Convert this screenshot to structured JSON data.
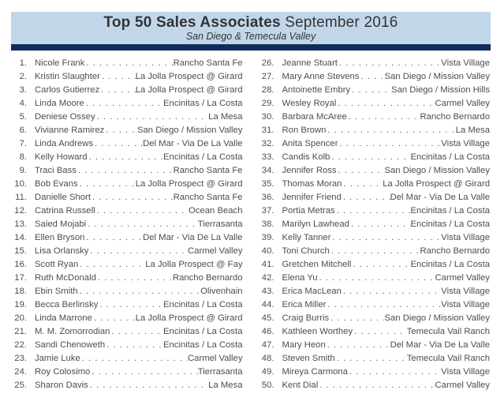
{
  "theme": {
    "band_color": "#c2d6ea",
    "bar_color": "#102c5c",
    "text_color": "#4d4d4d"
  },
  "header": {
    "title_bold": "Top 50 Sales Associates",
    "title_month": "September 2016",
    "subtitle": "San Diego & Temecula Valley"
  },
  "list": {
    "items": [
      {
        "rank": "1.",
        "name": "Nicole Frank",
        "office": "Rancho Santa Fe"
      },
      {
        "rank": "2.",
        "name": "Kristin Slaughter",
        "office": "La Jolla Prospect @ Girard"
      },
      {
        "rank": "3.",
        "name": "Carlos Gutierrez",
        "office": "La Jolla Prospect @ Girard"
      },
      {
        "rank": "4.",
        "name": "Linda Moore",
        "office": "Encinitas / La Costa"
      },
      {
        "rank": "5.",
        "name": "Deniese Ossey",
        "office": "La Mesa"
      },
      {
        "rank": "6.",
        "name": "Vivianne Ramirez",
        "office": "San Diego / Mission Valley"
      },
      {
        "rank": "7.",
        "name": "Linda Andrews",
        "office": "Del Mar - Via De La Valle"
      },
      {
        "rank": "8.",
        "name": "Kelly Howard",
        "office": "Encinitas / La Costa"
      },
      {
        "rank": "9.",
        "name": "Traci Bass",
        "office": "Rancho Santa Fe"
      },
      {
        "rank": "10.",
        "name": "Bob Evans",
        "office": "La Jolla Prospect @ Girard"
      },
      {
        "rank": "11.",
        "name": "Danielle Short",
        "office": "Rancho Santa Fe"
      },
      {
        "rank": "12.",
        "name": "Catrina Russell",
        "office": "Ocean Beach"
      },
      {
        "rank": "13.",
        "name": "Saied Mojabi",
        "office": "Tierrasanta"
      },
      {
        "rank": "14.",
        "name": "Ellen Bryson",
        "office": "Del Mar - Via De La Valle"
      },
      {
        "rank": "15.",
        "name": "Lisa Orlansky",
        "office": "Carmel Valley"
      },
      {
        "rank": "16.",
        "name": "Scott Ryan",
        "office": "La Jolla Prospect @ Fay"
      },
      {
        "rank": "17.",
        "name": "Ruth McDonald",
        "office": "Rancho Bernardo"
      },
      {
        "rank": "18.",
        "name": "Ebin Smith",
        "office": "Olivenhain"
      },
      {
        "rank": "19.",
        "name": "Becca Berlinsky",
        "office": "Encinitas / La Costa"
      },
      {
        "rank": "20.",
        "name": "Linda Marrone",
        "office": "La Jolla Prospect @ Girard"
      },
      {
        "rank": "21.",
        "name": "M. M. Zomorrodian",
        "office": "Encinitas / La Costa"
      },
      {
        "rank": "22.",
        "name": "Sandi Chenoweth",
        "office": "Encinitas / La Costa"
      },
      {
        "rank": "23.",
        "name": "Jamie Luke",
        "office": "Carmel Valley"
      },
      {
        "rank": "24.",
        "name": "Roy Colosimo",
        "office": "Tierrasanta"
      },
      {
        "rank": "25.",
        "name": "Sharon Davis",
        "office": "La Mesa"
      },
      {
        "rank": "26.",
        "name": "Jeanne Stuart",
        "office": "Vista Village"
      },
      {
        "rank": "27.",
        "name": "Mary Anne Stevens",
        "office": "San Diego / Mission Valley"
      },
      {
        "rank": "28.",
        "name": "Antoinette Embry",
        "office": "San Diego / Mission Hills"
      },
      {
        "rank": "29.",
        "name": "Wesley Royal",
        "office": "Carmel Valley"
      },
      {
        "rank": "30.",
        "name": "Barbara McAree",
        "office": "Rancho Bernardo"
      },
      {
        "rank": "31.",
        "name": "Ron Brown",
        "office": "La Mesa"
      },
      {
        "rank": "32.",
        "name": "Anita Spencer",
        "office": "Vista Village"
      },
      {
        "rank": "33.",
        "name": "Candis Kolb",
        "office": "Encinitas / La Costa"
      },
      {
        "rank": "34.",
        "name": "Jennifer Ross",
        "office": "San Diego / Mission Valley"
      },
      {
        "rank": "35.",
        "name": "Thomas Moran",
        "office": "La Jolla Prospect @ Girard"
      },
      {
        "rank": "36.",
        "name": "Jennifer Friend",
        "office": "Del Mar - Via De La Valle"
      },
      {
        "rank": "37.",
        "name": "Portia Metras",
        "office": "Encinitas / La Costa"
      },
      {
        "rank": "38.",
        "name": "Marilyn Lawhead",
        "office": "Encinitas / La Costa"
      },
      {
        "rank": "39.",
        "name": "Kelly Tanner",
        "office": "Vista Village"
      },
      {
        "rank": "40.",
        "name": "Toni Church",
        "office": "Rancho Bernardo"
      },
      {
        "rank": "41.",
        "name": "Gretchen Mitchell",
        "office": "Encinitas / La Costa"
      },
      {
        "rank": "42.",
        "name": "Elena Yu",
        "office": "Carmel Valley"
      },
      {
        "rank": "43.",
        "name": "Erica MacLean",
        "office": "Vista Village"
      },
      {
        "rank": "44.",
        "name": "Erica Miller",
        "office": "Vista Village"
      },
      {
        "rank": "45.",
        "name": "Craig Burris",
        "office": "San Diego / Mission Valley"
      },
      {
        "rank": "46.",
        "name": "Kathleen Worthey",
        "office": "Temecula Vail Ranch"
      },
      {
        "rank": "47.",
        "name": "Mary Heon",
        "office": "Del Mar - Via De La Valle"
      },
      {
        "rank": "48.",
        "name": "Steven Smith",
        "office": "Temecula Vail Ranch"
      },
      {
        "rank": "49.",
        "name": "Mireya Carmona",
        "office": "Vista Village"
      },
      {
        "rank": "50.",
        "name": "Kent Dial",
        "office": "Carmel Valley"
      }
    ]
  }
}
